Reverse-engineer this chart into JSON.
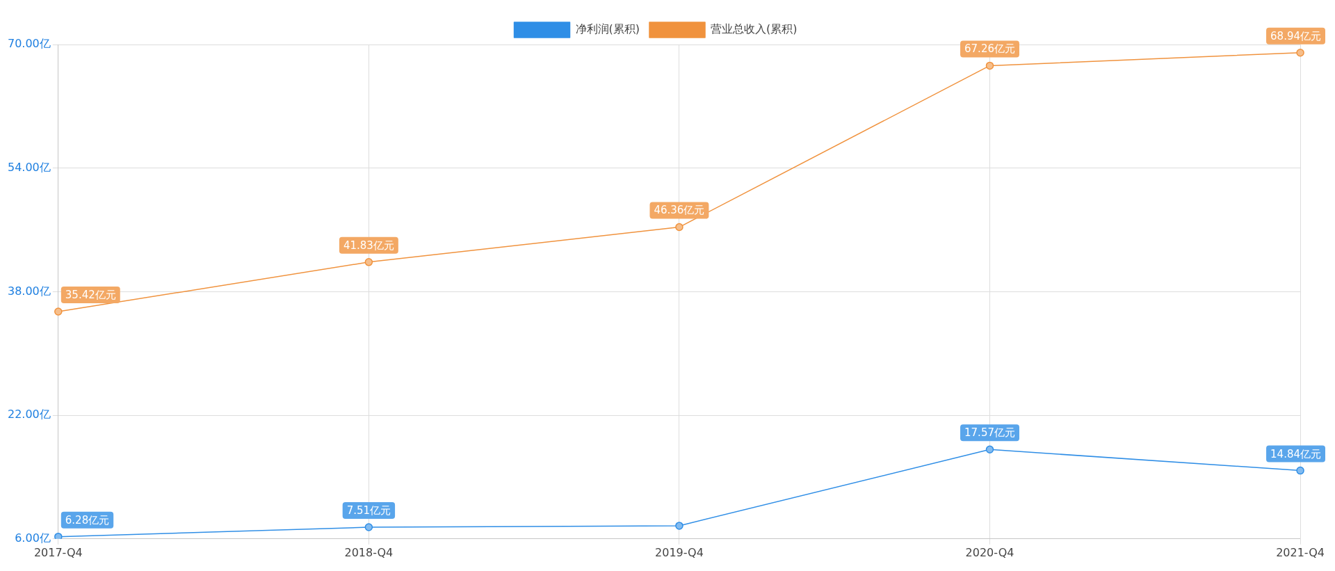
{
  "chart_data": {
    "type": "line",
    "categories": [
      "2017-Q4",
      "2018-Q4",
      "2019-Q4",
      "2020-Q4",
      "2021-Q4"
    ],
    "series": [
      {
        "name": "净利润(累积)",
        "color": "#2f8ee6",
        "values": [
          6.28,
          7.51,
          7.7,
          17.57,
          14.84
        ],
        "value_labels": [
          "6.28亿元",
          "7.51亿元",
          null,
          "17.57亿元",
          "14.84亿元"
        ]
      },
      {
        "name": "营业总收入(累积)",
        "color": "#f0923d",
        "values": [
          35.42,
          41.83,
          46.36,
          67.26,
          68.94
        ],
        "value_labels": [
          "35.42亿元",
          "41.83亿元",
          "46.36亿元",
          "67.26亿元",
          "68.94亿元"
        ]
      }
    ],
    "ylim": [
      6,
      70
    ],
    "yticks": [
      {
        "value": 6,
        "label": "6.00亿"
      },
      {
        "value": 22,
        "label": "22.00亿"
      },
      {
        "value": 38,
        "label": "38.00亿"
      },
      {
        "value": 54,
        "label": "54.00亿"
      },
      {
        "value": 70,
        "label": "70.00亿"
      }
    ],
    "grid": true,
    "legend": "top",
    "marker": "circle"
  }
}
